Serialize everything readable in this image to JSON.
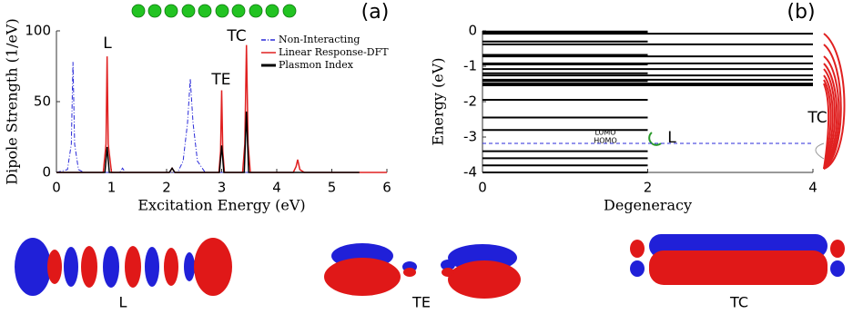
{
  "chart_data": [
    {
      "type": "line",
      "panel_label": "(a)",
      "x_label": "Excitation Energy (eV)",
      "y_label": "Dipole Strength (1/eV)",
      "xlim": [
        0,
        6
      ],
      "ylim": [
        0,
        100
      ],
      "xticks": [
        0,
        1,
        2,
        3,
        4,
        5,
        6
      ],
      "yticks": [
        0,
        50,
        100
      ],
      "legend": "upper right",
      "annotations": [
        "L",
        "TE",
        "TC"
      ],
      "series": [
        {
          "name": "Non-Interacting",
          "color": "#2a2ad8",
          "dash": "dashdot",
          "x": [
            0,
            0.2,
            0.27,
            0.3,
            0.33,
            0.4,
            0.5,
            1.15,
            1.2,
            1.25,
            2.2,
            2.3,
            2.38,
            2.43,
            2.48,
            2.56,
            2.7,
            5.5
          ],
          "values": [
            0,
            2,
            20,
            78,
            20,
            2,
            0,
            0,
            3,
            0,
            0,
            8,
            35,
            66,
            35,
            8,
            0,
            0
          ]
        },
        {
          "name": "Linear Response-DFT",
          "color": "#e02020",
          "dash": "solid",
          "x": [
            0,
            0.85,
            0.9,
            0.92,
            0.94,
            1.0,
            2.05,
            2.1,
            2.15,
            2.95,
            2.98,
            3.0,
            3.02,
            3.05,
            3.38,
            3.42,
            3.45,
            3.48,
            3.52,
            4.3,
            4.35,
            4.38,
            4.42,
            4.5,
            6
          ],
          "values": [
            0,
            0,
            20,
            82,
            20,
            0,
            0,
            3,
            0,
            0,
            15,
            58,
            15,
            0,
            0,
            20,
            90,
            20,
            0,
            0,
            4,
            9,
            2,
            0,
            0
          ]
        },
        {
          "name": "Plasmon Index",
          "color": "#000000",
          "dash": "solid",
          "x": [
            0,
            0.88,
            0.92,
            0.96,
            2.05,
            2.1,
            2.15,
            2.96,
            3.0,
            3.04,
            3.41,
            3.45,
            3.49,
            5.5
          ],
          "values": [
            0,
            0,
            18,
            0,
            0,
            3,
            0,
            0,
            19,
            0,
            0,
            43,
            0,
            0
          ]
        }
      ]
    },
    {
      "type": "levels",
      "panel_label": "(b)",
      "x_label": "Degeneracy",
      "y_label": "Energy (eV)",
      "xlim": [
        0,
        4
      ],
      "ylim": [
        -4,
        0
      ],
      "xticks": [
        0,
        2,
        4
      ],
      "yticks": [
        0,
        -1,
        -2,
        -3,
        -4
      ],
      "annotations": [
        "LUMO",
        "HOMO",
        "L",
        "TC"
      ],
      "homo": -3.18,
      "energies": [
        -0.02,
        -0.05,
        -0.08,
        -0.3,
        -0.38,
        -0.68,
        -0.72,
        -0.92,
        -0.95,
        -1.08,
        -1.2,
        -1.26,
        -1.38,
        -1.42,
        -1.49,
        -1.54,
        -1.95,
        -2.45,
        -2.8,
        -3.4,
        -3.6,
        -3.8,
        -4.0
      ],
      "degeneracy": [
        2,
        2,
        4,
        2,
        4,
        2,
        4,
        4,
        2,
        4,
        2,
        4,
        4,
        2,
        4,
        4,
        2,
        2,
        2,
        2,
        2,
        2,
        2
      ]
    }
  ],
  "orbital_images": [
    {
      "label": "L"
    },
    {
      "label": "TE"
    },
    {
      "label": "TC"
    }
  ]
}
